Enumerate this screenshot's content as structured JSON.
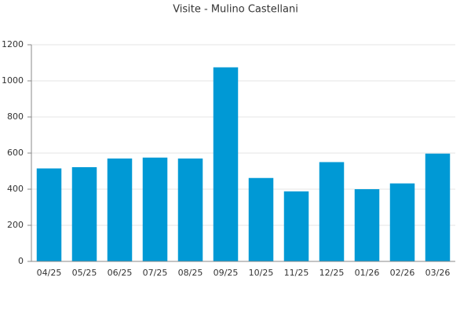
{
  "chart_data": {
    "type": "bar",
    "title": "Visite - Mulino Castellani",
    "categories": [
      "04/25",
      "05/25",
      "06/25",
      "07/25",
      "08/25",
      "09/25",
      "10/25",
      "11/25",
      "12/25",
      "01/26",
      "02/26",
      "03/26"
    ],
    "values": [
      515,
      522,
      570,
      575,
      570,
      1075,
      462,
      388,
      550,
      400,
      432,
      597
    ],
    "color": "#0099d5",
    "ylim": [
      0,
      1200
    ],
    "yticks": [
      0,
      200,
      400,
      600,
      800,
      1000,
      1200
    ],
    "grid": true
  }
}
